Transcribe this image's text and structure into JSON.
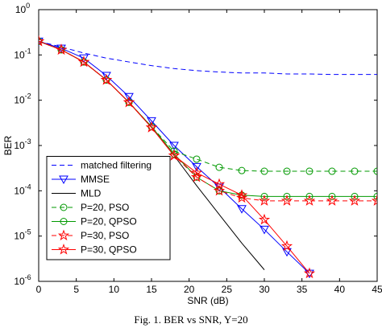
{
  "chart_data": {
    "type": "line",
    "xlabel": "SNR (dB)",
    "ylabel": "BER",
    "caption": "Fig. 1. BER vs SNR, Y=20",
    "x": [
      0,
      3,
      6,
      9,
      12,
      15,
      18,
      21,
      24,
      27,
      30,
      33,
      36,
      39,
      42,
      45
    ],
    "xlim": [
      0,
      45
    ],
    "xticks": [
      0,
      5,
      10,
      15,
      20,
      25,
      30,
      35,
      40,
      45
    ],
    "ylim": [
      1e-06,
      1
    ],
    "log_y": true,
    "yticks": [
      {
        "value": 1,
        "label": "10^0"
      },
      {
        "value": 0.1,
        "label": "10^-1"
      },
      {
        "value": 0.01,
        "label": "10^-2"
      },
      {
        "value": 0.001,
        "label": "10^-3"
      },
      {
        "value": 0.0001,
        "label": "10^-4"
      },
      {
        "value": 1e-05,
        "label": "10^-5"
      },
      {
        "value": 1e-06,
        "label": "10^-6"
      }
    ],
    "legend": "lower left",
    "series": [
      {
        "name": "matched filtering",
        "color": "#0000ff",
        "dash": true,
        "marker": "none",
        "values": [
          0.2,
          0.15,
          0.11,
          0.085,
          0.07,
          0.058,
          0.05,
          0.045,
          0.042,
          0.04,
          0.04,
          0.038,
          0.038,
          0.037,
          0.037,
          0.037
        ]
      },
      {
        "name": "MMSE",
        "color": "#0000ff",
        "dash": false,
        "marker": "triangle",
        "values": [
          0.2,
          0.14,
          0.085,
          0.035,
          0.012,
          0.0035,
          0.001,
          0.00034,
          0.00012,
          4e-05,
          1.4e-05,
          4.5e-06,
          1.5e-06,
          null,
          null,
          null
        ]
      },
      {
        "name": "MLD",
        "color": "#000000",
        "dash": false,
        "marker": "none",
        "values": [
          0.2,
          0.13,
          0.07,
          0.028,
          0.009,
          0.0025,
          0.0006,
          0.00013,
          3e-05,
          7e-06,
          1.8e-06,
          null,
          null,
          null,
          null,
          null
        ]
      },
      {
        "name": "P=20, PSO",
        "color": "#009900",
        "dash": true,
        "marker": "circle",
        "values": [
          0.2,
          0.13,
          0.07,
          0.028,
          0.009,
          0.0026,
          0.00075,
          0.0005,
          0.00033,
          0.00028,
          0.00027,
          0.00027,
          0.00027,
          0.00027,
          0.00027,
          0.00027
        ]
      },
      {
        "name": "P=20, QPSO",
        "color": "#009900",
        "dash": false,
        "marker": "circle",
        "values": [
          0.2,
          0.13,
          0.07,
          0.028,
          0.009,
          0.0026,
          0.00065,
          0.0002,
          0.0001,
          8e-05,
          7.5e-05,
          7.5e-05,
          7.5e-05,
          7.5e-05,
          7.5e-05,
          7.5e-05
        ]
      },
      {
        "name": "P=30, PSO",
        "color": "#ff0000",
        "dash": true,
        "marker": "star",
        "values": [
          0.2,
          0.13,
          0.07,
          0.028,
          0.009,
          0.0025,
          0.0006,
          0.0002,
          0.0001,
          7e-05,
          6e-05,
          6e-05,
          6e-05,
          6e-05,
          6e-05,
          6e-05
        ]
      },
      {
        "name": "P=30, QPSO",
        "color": "#ff0000",
        "dash": false,
        "marker": "star",
        "values": [
          0.2,
          0.13,
          0.07,
          0.028,
          0.009,
          0.0025,
          0.0006,
          0.00025,
          0.00014,
          8e-05,
          2.3e-05,
          6e-06,
          1.5e-06,
          null,
          null,
          null
        ]
      }
    ]
  }
}
